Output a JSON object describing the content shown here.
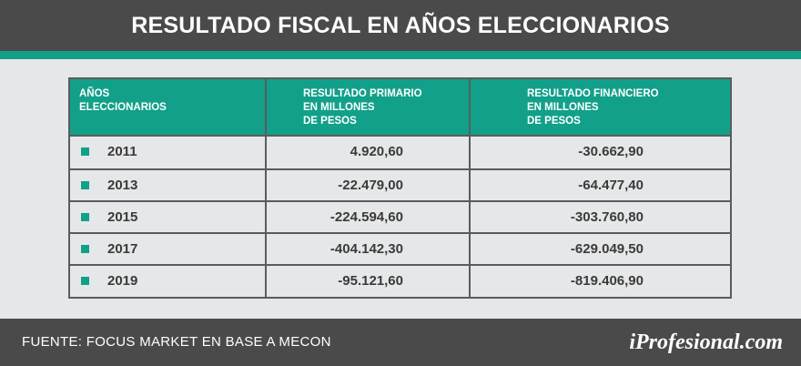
{
  "chart_data": {
    "type": "table",
    "title": "RESULTADO FISCAL EN AÑOS ELECCIONARIOS",
    "columns": [
      "AÑOS\nELECCIONARIOS",
      "RESULTADO PRIMARIO\nEN MILLONES\nDE PESOS",
      "RESULTADO FINANCIERO\nEN MILLONES\nDE PESOS"
    ],
    "rows": [
      {
        "year": "2011",
        "primario": "4.920,60",
        "financiero": "-30.662,90"
      },
      {
        "year": "2013",
        "primario": "-22.479,00",
        "financiero": "-64.477,40"
      },
      {
        "year": "2015",
        "primario": "-224.594,60",
        "financiero": "-303.760,80"
      },
      {
        "year": "2017",
        "primario": "-404.142,30",
        "financiero": "-629.049,50"
      },
      {
        "year": "2019",
        "primario": "-95.121,60",
        "financiero": "-819.406,90"
      }
    ],
    "source": "FUENTE: FOCUS MARKET EN BASE A MECON"
  },
  "brand": "iProfesional.com",
  "colors": {
    "accent": "#12a08a",
    "dark": "#4a4a4a",
    "background": "#e6e7e8"
  }
}
